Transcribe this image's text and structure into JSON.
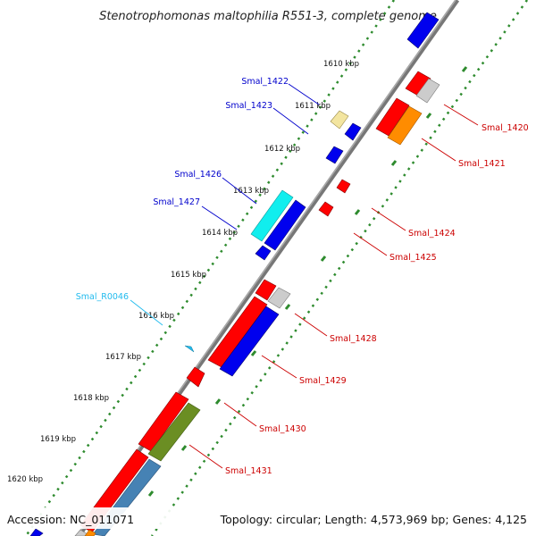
{
  "header": {
    "title": "Stenotrophomonas maltophilia R551-3, complete genome"
  },
  "footer": {
    "accession": "Accession: NC_011071",
    "summary": "Topology: circular; Length: 4,573,969 bp; Genes: 4,125"
  },
  "colors": {
    "backbone": "#888888",
    "tick_dots": "#2e8b2e",
    "label_plus_strand": "#0000cc",
    "label_minus_strand": "#cc0000",
    "label_rna": "#22bbee",
    "gene_red": "#ff0000",
    "gene_blue": "#0000ee",
    "gene_grey": "#cccccc",
    "gene_orange": "#ff8c00",
    "gene_cream": "#f3e5a0",
    "gene_cyan": "#11eeee",
    "gene_olive": "#6b8e23",
    "gene_steel": "#4682b4",
    "gene_lightblue": "#22bbee"
  },
  "scale_labels": [
    "1610 kbp",
    "1611 kbp",
    "1612 kbp",
    "1613 kbp",
    "1614 kbp",
    "1615 kbp",
    "1616 kbp",
    "1617 kbp",
    "1618 kbp",
    "1619 kbp",
    "1620 kbp"
  ],
  "gene_labels": [
    "Smal_1422",
    "Smal_1423",
    "Smal_1426",
    "Smal_1427",
    "Smal_R0046",
    "Smal_1420",
    "Smal_1421",
    "Smal_1424",
    "Smal_1425",
    "Smal_1428",
    "Smal_1429",
    "Smal_1430",
    "Smal_1431"
  ]
}
